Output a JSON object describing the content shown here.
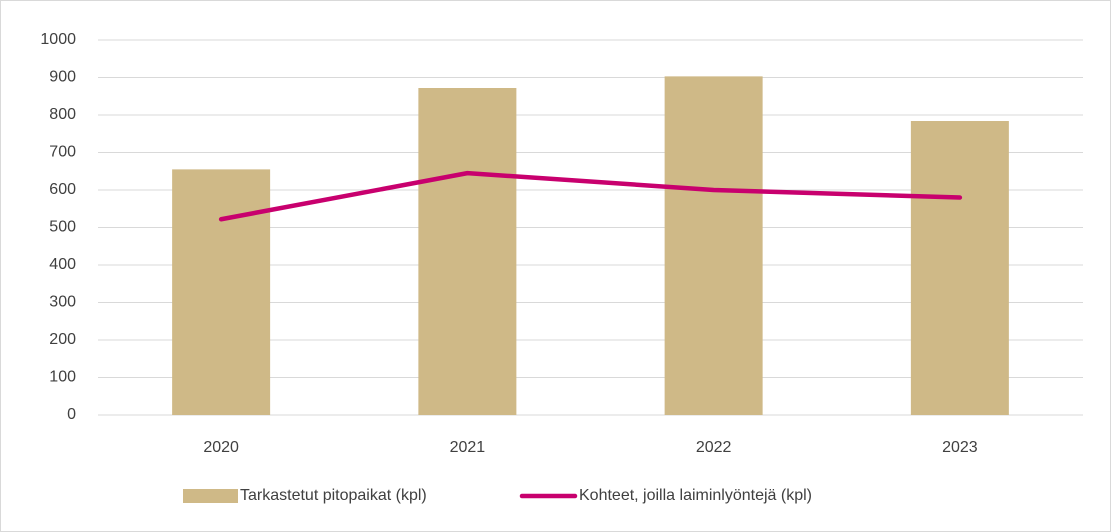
{
  "chart_data": {
    "type": "combo",
    "categories": [
      "2020",
      "2021",
      "2022",
      "2023"
    ],
    "series": [
      {
        "name": "Tarkastetut pitopaikat (kpl)",
        "type": "bar",
        "color": "#cfb987",
        "values": [
          655,
          872,
          903,
          784
        ]
      },
      {
        "name": "Kohteet, joilla laiminlyöntejä (kpl)",
        "type": "line",
        "color": "#c8006e",
        "values": [
          522,
          645,
          600,
          580
        ]
      }
    ],
    "ylim": [
      0,
      1000
    ],
    "yticks": [
      0,
      100,
      200,
      300,
      400,
      500,
      600,
      700,
      800,
      900,
      1000
    ],
    "grid": true,
    "legend": "bottom"
  }
}
